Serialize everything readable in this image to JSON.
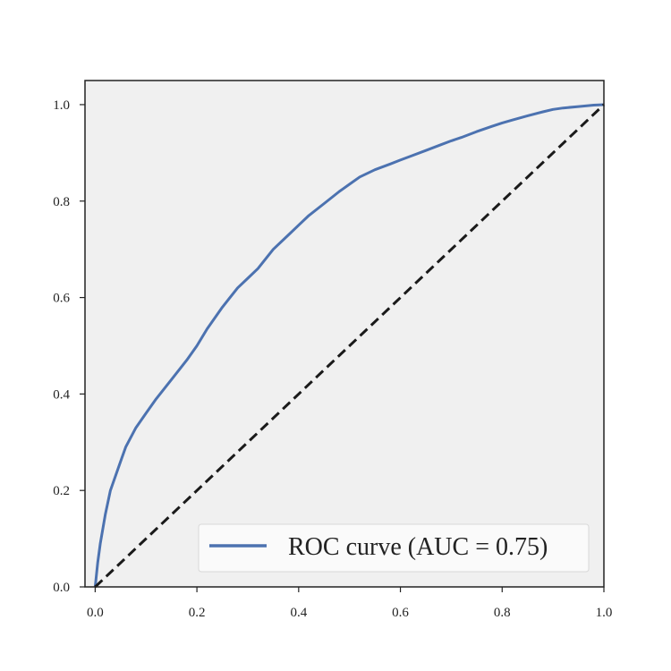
{
  "chart_data": {
    "type": "line",
    "title": "",
    "xlabel": "",
    "ylabel": "",
    "xlim": [
      -0.02,
      1.0
    ],
    "ylim": [
      0.0,
      1.05
    ],
    "x_ticks": [
      "0.0",
      "0.2",
      "0.4",
      "0.6",
      "0.8",
      "1.0"
    ],
    "y_ticks": [
      "0.0",
      "0.2",
      "0.4",
      "0.6",
      "0.8",
      "1.0"
    ],
    "grid": false,
    "legend": {
      "placement": "bottom-right",
      "label": "ROC curve (AUC = 0.75)"
    },
    "colors": {
      "roc": "#4c72b0",
      "chance": "#1a1a1a",
      "plot_bg": "#f0f0f0"
    },
    "series": [
      {
        "name": "ROC curve (AUC = 0.75)",
        "style": "solid",
        "x": [
          0.0,
          0.005,
          0.01,
          0.02,
          0.03,
          0.04,
          0.05,
          0.06,
          0.08,
          0.1,
          0.12,
          0.15,
          0.18,
          0.2,
          0.22,
          0.25,
          0.28,
          0.3,
          0.32,
          0.35,
          0.38,
          0.4,
          0.42,
          0.45,
          0.48,
          0.5,
          0.52,
          0.55,
          0.58,
          0.6,
          0.62,
          0.65,
          0.68,
          0.7,
          0.72,
          0.75,
          0.78,
          0.8,
          0.82,
          0.85,
          0.88,
          0.9,
          0.92,
          0.95,
          0.98,
          1.0
        ],
        "y": [
          0.0,
          0.05,
          0.09,
          0.15,
          0.2,
          0.23,
          0.26,
          0.29,
          0.33,
          0.36,
          0.39,
          0.43,
          0.47,
          0.5,
          0.535,
          0.58,
          0.62,
          0.64,
          0.66,
          0.7,
          0.73,
          0.75,
          0.77,
          0.795,
          0.82,
          0.835,
          0.85,
          0.865,
          0.877,
          0.885,
          0.893,
          0.905,
          0.917,
          0.925,
          0.932,
          0.944,
          0.955,
          0.962,
          0.968,
          0.977,
          0.985,
          0.99,
          0.993,
          0.996,
          0.999,
          1.0
        ]
      },
      {
        "style": "dashed",
        "x": [
          0.0,
          1.0
        ],
        "y": [
          0.0,
          1.0
        ]
      }
    ]
  }
}
